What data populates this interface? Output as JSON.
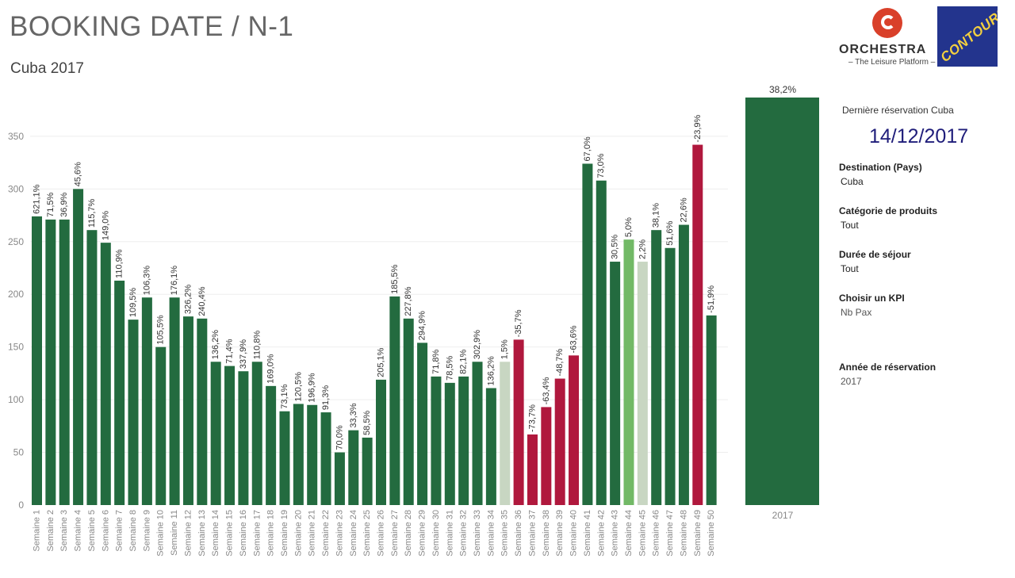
{
  "header": {
    "title": "BOOKING DATE / N-1",
    "subtitle": "Cuba 2017"
  },
  "logos": {
    "orchestra_name": "ORCHESTRA",
    "orchestra_tagline": "– The Leisure Platform –",
    "contours_name": "CONTOURS"
  },
  "sidebar": {
    "last_booking_label": "Dernière réservation Cuba",
    "last_booking_date": "14/12/2017",
    "filters": [
      {
        "label": "Destination (Pays)",
        "value": "Cuba"
      },
      {
        "label": "Catégorie de produits",
        "value": "Tout"
      },
      {
        "label": "Durée de séjour",
        "value": "Tout"
      },
      {
        "label": "Choisir un KPI",
        "value": "Nb Pax"
      },
      {
        "label": "Année de réservation",
        "value": "2017"
      }
    ]
  },
  "colors": {
    "dark_green": "#236b3f",
    "light_green": "#72b966",
    "grey_green": "#c8d6c2",
    "crimson": "#b0183d",
    "gridline": "#eeeeee",
    "axis_text": "#888888"
  },
  "chart_data": [
    {
      "type": "bar",
      "title": "",
      "xlabel": "",
      "ylabel": "Nb Pax",
      "ylim": [
        0,
        380
      ],
      "yticks": [
        0,
        50,
        100,
        150,
        200,
        250,
        300,
        350
      ],
      "grid": true,
      "categories": [
        "Semaine 1",
        "Semaine 2",
        "Semaine 3",
        "Semaine 4",
        "Semaine 5",
        "Semaine 6",
        "Semaine 7",
        "Semaine 8",
        "Semaine 9",
        "Semaine 10",
        "Semaine 11",
        "Semaine 12",
        "Semaine 13",
        "Semaine 14",
        "Semaine 15",
        "Semaine 16",
        "Semaine 17",
        "Semaine 18",
        "Semaine 19",
        "Semaine 20",
        "Semaine 21",
        "Semaine 22",
        "Semaine 23",
        "Semaine 24",
        "Semaine 25",
        "Semaine 26",
        "Semaine 27",
        "Semaine 28",
        "Semaine 29",
        "Semaine 30",
        "Semaine 31",
        "Semaine 32",
        "Semaine 33",
        "Semaine 34",
        "Semaine 35",
        "Semaine 36",
        "Semaine 37",
        "Semaine 38",
        "Semaine 39",
        "Semaine 40",
        "Semaine 41",
        "Semaine 42",
        "Semaine 43",
        "Semaine 44",
        "Semaine 45",
        "Semaine 46",
        "Semaine 47",
        "Semaine 48",
        "Semaine 49",
        "Semaine 50"
      ],
      "values": [
        274,
        271,
        271,
        300,
        261,
        249,
        213,
        176,
        197,
        150,
        197,
        179,
        177,
        136,
        132,
        127,
        136,
        113,
        89,
        96,
        95,
        88,
        50,
        71,
        64,
        119,
        198,
        177,
        154,
        122,
        116,
        122,
        136,
        111,
        136,
        157,
        67,
        93,
        120,
        142,
        324,
        308,
        231,
        252,
        231,
        261,
        244,
        266,
        342,
        180
      ],
      "labels": [
        "621,1%",
        "71,5%",
        "36,9%",
        "45,6%",
        "115,7%",
        "149,0%",
        "110,9%",
        "109,5%",
        "106,3%",
        "105,5%",
        "176,1%",
        "326,2%",
        "240,4%",
        "136,2%",
        "71,4%",
        "337,9%",
        "110,8%",
        "169,0%",
        "73,1%",
        "120,5%",
        "196,9%",
        "91,3%",
        "70,0%",
        "33,3%",
        "58,5%",
        "205,1%",
        "185,5%",
        "227,8%",
        "294,9%",
        "71,8%",
        "78,5%",
        "82,1%",
        "302,9%",
        "136,2%",
        "1,5%",
        "-35,7%",
        "-73,7%",
        "-63,4%",
        "-48,7%",
        "-63,6%",
        "67,0%",
        "73,0%",
        "30,5%",
        "5,0%",
        "2,2%",
        "38,1%",
        "51,6%",
        "22,6%",
        "-23,9%",
        "-51,9%"
      ],
      "color_category": [
        "dark",
        "dark",
        "dark",
        "dark",
        "dark",
        "dark",
        "dark",
        "dark",
        "dark",
        "dark",
        "dark",
        "dark",
        "dark",
        "dark",
        "dark",
        "dark",
        "dark",
        "dark",
        "dark",
        "dark",
        "dark",
        "dark",
        "dark",
        "dark",
        "dark",
        "dark",
        "dark",
        "dark",
        "dark",
        "dark",
        "dark",
        "dark",
        "dark",
        "dark",
        "grey",
        "red",
        "red",
        "red",
        "red",
        "red",
        "dark",
        "dark",
        "dark",
        "light",
        "grey",
        "dark",
        "dark",
        "dark",
        "red",
        "dark"
      ]
    },
    {
      "type": "bar",
      "title": "",
      "categories": [
        "2017"
      ],
      "values": [
        1
      ],
      "labels": [
        "38,2%"
      ],
      "color_category": [
        "dark"
      ]
    }
  ]
}
